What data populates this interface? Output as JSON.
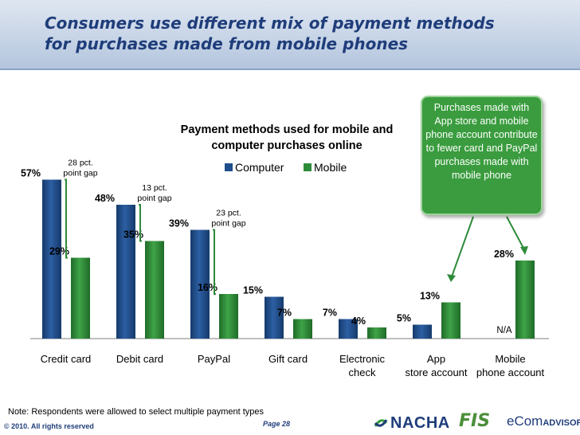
{
  "slide": {
    "title_line1": "Consumers use different mix of payment methods",
    "title_line2": "for purchases made from mobile phones",
    "note": "Note:  Respondents were allowed to select multiple payment types",
    "copyright": "© 2010. All rights reserved",
    "page": "Page  28",
    "logos": {
      "nacha": "NACHA",
      "fis": "FIS",
      "ecom_main": "eCom",
      "ecom_sub": "ADVISORS"
    }
  },
  "callout": {
    "text": "Purchases made with App store and mobile phone account contribute to fewer card and PayPal purchases made with mobile phone"
  },
  "chart_data": {
    "type": "bar",
    "title": "Payment methods used for mobile and computer purchases online",
    "categories": [
      "Credit card",
      "Debit card",
      "PayPal",
      "Gift card",
      "Electronic check",
      "App store account",
      "Mobile phone account"
    ],
    "series": [
      {
        "name": "Computer",
        "values": [
          57,
          48,
          39,
          15,
          7,
          5,
          null
        ],
        "labels": [
          "57%",
          "48%",
          "39%",
          "15%",
          "7%",
          "5%",
          "N/A"
        ],
        "color": "#1f4e8c"
      },
      {
        "name": "Mobile",
        "values": [
          29,
          35,
          16,
          7,
          4,
          13,
          28
        ],
        "labels": [
          "29%",
          "35%",
          "16%",
          "7%",
          "4%",
          "13%",
          "28%"
        ],
        "color": "#2e8b3a"
      }
    ],
    "gap_annotations": [
      {
        "category": "Credit card",
        "text": "28 pct. point gap"
      },
      {
        "category": "Debit card",
        "text": "13 pct. point gap"
      },
      {
        "category": "PayPal",
        "text": "23 pct. point gap"
      }
    ],
    "ylim": [
      0,
      60
    ],
    "grid": false,
    "legend": "top-center"
  }
}
